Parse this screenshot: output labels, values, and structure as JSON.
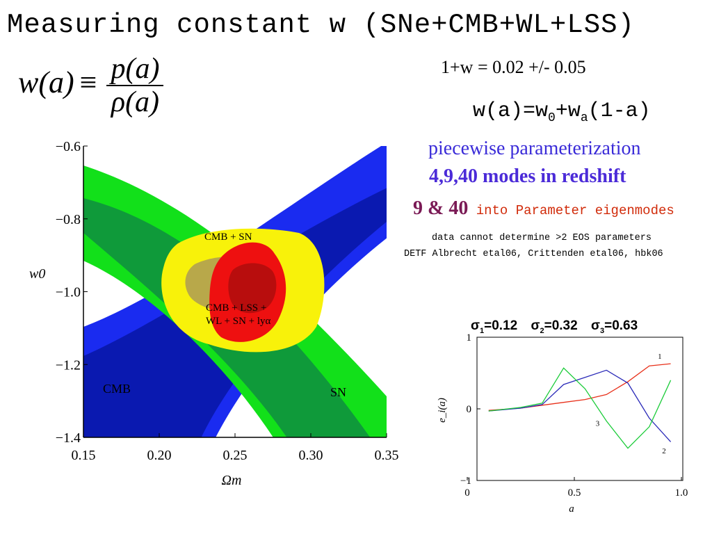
{
  "page": {
    "title": "Measuring constant w (SNe+CMB+WL+LSS)",
    "definition": {
      "lhs": "w(a)",
      "symbol": "≡",
      "numerator": "p(a)",
      "denominator": "ρ(a)"
    },
    "measurement": "1+w =  0.02 +/- 0.05",
    "wpar": {
      "pre": "w(a)=w",
      "sub0": "0",
      "mid": "+w",
      "suba": "a",
      "post": "(1-a)"
    },
    "piecewise": "piecewise parameterization",
    "modes": "4,9,40 modes in redshift",
    "nine_forty": "9 & 40",
    "eigen": " into Parameter eigenmodes",
    "no_data": "data cannot determine >2 EOS parameters",
    "detf": "DETF Albrecht etal06, Crittenden etal06, hbk06",
    "sigmas": [
      {
        "sym": "σ",
        "sub": "1",
        "val": "=0.12"
      },
      {
        "sym": "σ",
        "sub": "2",
        "val": "=0.32"
      },
      {
        "sym": "σ",
        "sub": "3",
        "val": "=0.63"
      }
    ]
  },
  "chart_data": [
    {
      "type": "contour",
      "xlabel": "Ωm",
      "ylabel": "w0",
      "xlim": [
        0.15,
        0.35
      ],
      "ylim": [
        -1.4,
        -0.6
      ],
      "xticks": [
        0.15,
        0.2,
        0.25,
        0.3,
        0.35
      ],
      "xtick_labels": [
        "0.15",
        "0.20",
        "0.25",
        "0.30",
        "0.35"
      ],
      "yticks": [
        -1.4,
        -1.2,
        -1.0,
        -0.8,
        -0.6
      ],
      "ytick_labels": [
        "−1.4",
        "−1.2",
        "−1.0",
        "−0.8",
        "−0.6"
      ],
      "regions": [
        {
          "name": "CMB",
          "color_inner": "#0a19b0",
          "color_outer": "#1a2bf0"
        },
        {
          "name": "SN",
          "color_inner": "#0f9a3a",
          "color_outer": "#12e01a"
        },
        {
          "name": "CMB + SN",
          "color_inner": "#b8a84a",
          "color_outer": "#f8f20a"
        },
        {
          "name": "CMB + LSS + WL + SN + lyα",
          "color_inner": "#b80d0d",
          "color_outer": "#ee1010"
        }
      ],
      "labels": {
        "cmb": "CMB",
        "sn": "SN",
        "cmb_sn": "CMB + SN",
        "combo_1": "CMB + LSS +",
        "combo_2": "WL + SN + lyα"
      },
      "grid": false
    },
    {
      "type": "line",
      "xlabel": "a",
      "ylabel": "e_i(a)",
      "xlim": [
        0,
        1
      ],
      "ylim": [
        -1,
        1
      ],
      "xticks": [
        0,
        0.5,
        1.0
      ],
      "xtick_labels": [
        "0",
        "0.5",
        "1.0"
      ],
      "yticks": [
        -1,
        0,
        1
      ],
      "ytick_labels": [
        "−1",
        "0",
        "1"
      ],
      "series": [
        {
          "name": "1",
          "color": "#e8301a",
          "x": [
            0.1,
            0.25,
            0.35,
            0.45,
            0.55,
            0.65,
            0.75,
            0.85,
            0.95
          ],
          "y": [
            -0.02,
            0.01,
            0.05,
            0.09,
            0.13,
            0.2,
            0.38,
            0.6,
            0.63
          ]
        },
        {
          "name": "2",
          "color": "#2a2ab8",
          "x": [
            0.1,
            0.25,
            0.35,
            0.45,
            0.55,
            0.65,
            0.75,
            0.85,
            0.95
          ],
          "y": [
            -0.03,
            0.01,
            0.06,
            0.34,
            0.44,
            0.54,
            0.36,
            -0.13,
            -0.46
          ]
        },
        {
          "name": "3",
          "color": "#1ccc3a",
          "x": [
            0.1,
            0.25,
            0.35,
            0.45,
            0.55,
            0.65,
            0.75,
            0.85,
            0.95
          ],
          "y": [
            -0.03,
            0.02,
            0.08,
            0.57,
            0.28,
            -0.17,
            -0.55,
            -0.25,
            0.4
          ]
        }
      ],
      "line_labels": [
        {
          "text": "1",
          "x": 0.89,
          "y": 0.7
        },
        {
          "text": "2",
          "x": 0.91,
          "y": -0.62
        },
        {
          "text": "3",
          "x": 0.6,
          "y": -0.24
        }
      ],
      "grid": false
    }
  ]
}
